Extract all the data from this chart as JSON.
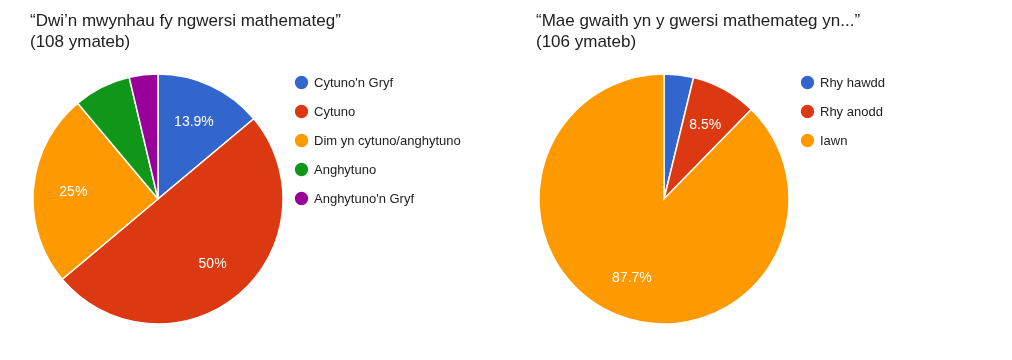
{
  "chart_data": [
    {
      "type": "pie",
      "title": "“Dwi’n mwynhau fy ngwersi mathemateg”",
      "subtitle": "(108 ymateb)",
      "categories": [
        "Cytuno'n Gryf",
        "Cytuno",
        "Dim yn cytuno/anghytuno",
        "Anghytuno",
        "Anghytuno'n Gryf"
      ],
      "values": [
        13.9,
        50,
        25,
        7.4,
        3.7
      ],
      "value_labels": [
        "13.9%",
        "50%",
        "25%",
        null,
        null
      ],
      "colors": [
        "#3366cc",
        "#dc3912",
        "#ff9900",
        "#109618",
        "#990099"
      ],
      "legend": "right"
    },
    {
      "type": "pie",
      "title": "“Mae gwaith yn y gwersi mathemateg yn...”",
      "subtitle": "(106 ymateb)",
      "categories": [
        "Rhy hawdd",
        "Rhy anodd",
        "Iawn"
      ],
      "values": [
        3.8,
        8.5,
        87.7
      ],
      "value_labels": [
        null,
        "8.5%",
        "87.7%"
      ],
      "colors": [
        "#3366cc",
        "#dc3912",
        "#ff9900"
      ],
      "legend": "right"
    }
  ]
}
